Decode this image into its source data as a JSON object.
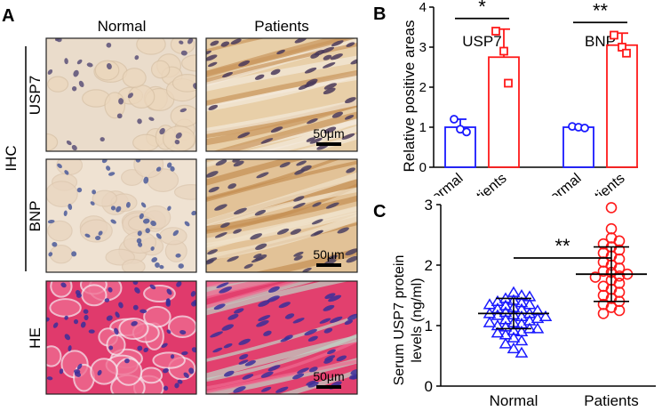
{
  "panels": {
    "a": {
      "letter": "A",
      "col_headers": [
        "Normal",
        "Patients"
      ],
      "group_label": "IHC",
      "row_labels": [
        "USP7",
        "BNP",
        "HE"
      ],
      "scale_bar_label": "50μm",
      "colors": {
        "ihc_bg_normal": "#eadccb",
        "ihc_bg_patients": "#e4c59b",
        "he_bg": "#e0356a",
        "nuclei": "#4a3f78",
        "he_nuclei": "#3a2f9a"
      }
    },
    "b": {
      "letter": "B",
      "ylabel": "Relative positive areas",
      "yticks": [
        "0",
        "1",
        "2",
        "3",
        "4"
      ],
      "sig_marks": [
        "*",
        "**"
      ]
    },
    "c": {
      "letter": "C",
      "ylabel_line1": "Serum USP7 protein",
      "ylabel_line2": "levels (ng/ml)",
      "yticks": [
        "0",
        "1",
        "2",
        "3"
      ],
      "sig_mark": "**"
    }
  },
  "chart_data": [
    {
      "type": "bar",
      "panel": "B",
      "ylabel": "Relative positive areas",
      "ylim": [
        0,
        4
      ],
      "groups": [
        {
          "title": "USP7",
          "categories": [
            "Normal",
            "Patients"
          ],
          "means": [
            1.0,
            2.75
          ],
          "errors": [
            0.2,
            0.7
          ],
          "points": [
            [
              1.2,
              0.95,
              0.88
            ],
            [
              3.4,
              2.9,
              2.1
            ]
          ],
          "significance": "*"
        },
        {
          "title": "BNP",
          "categories": [
            "Normal",
            "Patients"
          ],
          "means": [
            1.0,
            3.05
          ],
          "errors": [
            0.05,
            0.3
          ],
          "points": [
            [
              1.02,
              1.0,
              0.98
            ],
            [
              3.3,
              3.0,
              2.85
            ]
          ],
          "significance": "**"
        }
      ],
      "colors": {
        "Normal": "#1a1aff",
        "Patients": "#ff1a1a"
      }
    },
    {
      "type": "scatter",
      "panel": "C",
      "ylabel": "Serum USP7 protein levels (ng/ml)",
      "ylim": [
        0,
        3
      ],
      "categories": [
        "Normal",
        "Patients"
      ],
      "significance": "**",
      "series": [
        {
          "name": "Normal",
          "marker": "triangle",
          "color": "#1a1aff",
          "mean": 1.2,
          "sd": 0.25,
          "values": [
            1.55,
            1.5,
            1.45,
            1.48,
            1.42,
            1.4,
            1.38,
            1.35,
            1.33,
            1.3,
            1.28,
            1.27,
            1.25,
            1.22,
            1.2,
            1.2,
            1.18,
            1.17,
            1.15,
            1.12,
            1.1,
            1.08,
            1.05,
            1.03,
            1.0,
            0.98,
            0.95,
            0.92,
            0.9,
            0.88,
            0.85,
            0.8,
            0.75,
            0.7,
            0.62,
            0.55,
            1.35,
            1.15,
            1.05,
            0.95
          ]
        },
        {
          "name": "Patients",
          "marker": "circle",
          "color": "#ff1a1a",
          "mean": 1.85,
          "sd": 0.45,
          "values": [
            2.95,
            2.6,
            2.45,
            2.4,
            2.35,
            2.3,
            2.25,
            2.2,
            2.15,
            2.1,
            2.05,
            2.0,
            1.95,
            1.9,
            1.88,
            1.85,
            1.82,
            1.8,
            1.75,
            1.7,
            1.65,
            1.6,
            1.55,
            1.5,
            1.45,
            1.4,
            1.35,
            1.3,
            1.25,
            1.2
          ]
        }
      ]
    }
  ]
}
